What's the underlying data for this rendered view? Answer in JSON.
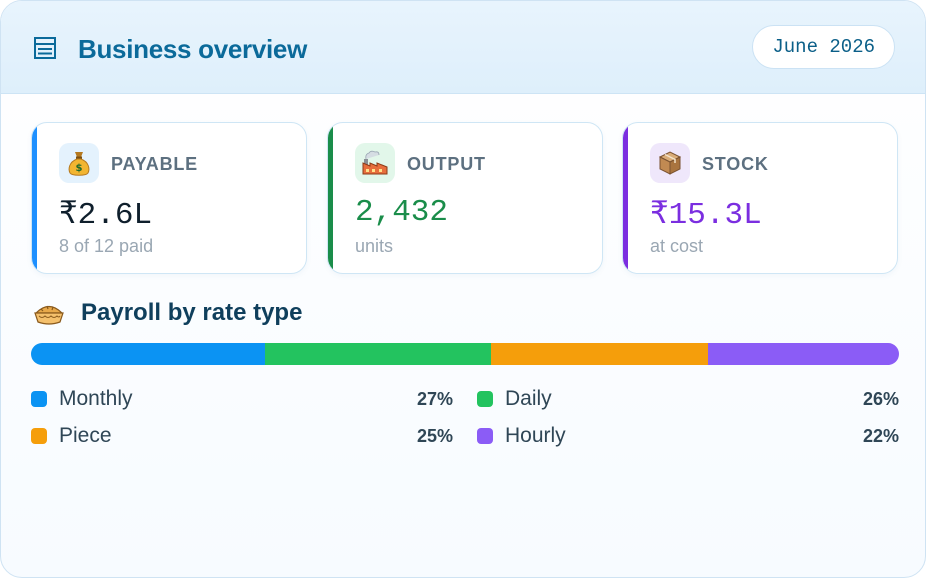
{
  "header": {
    "title": "Business overview",
    "month": "June 2026",
    "icon": "list-icon"
  },
  "stats": [
    {
      "label": "PAYABLE",
      "value": "₹2.6L",
      "sub": "8 of 12 paid",
      "icon": "money-bag-icon",
      "accent": "#1e90ff",
      "value_color": "#0f1f2c",
      "icon_bg": "#e4f2fd"
    },
    {
      "label": "OUTPUT",
      "value": "2,432",
      "sub": "units",
      "icon": "factory-icon",
      "accent": "#1a8d4a",
      "value_color": "#1a8d4a",
      "icon_bg": "#e2f7ea"
    },
    {
      "label": "STOCK",
      "value": "₹15.3L",
      "sub": "at cost",
      "icon": "package-icon",
      "accent": "#7b2ee0",
      "value_color": "#7b2ee0",
      "icon_bg": "#efe7fb"
    }
  ],
  "payroll": {
    "title": "Payroll by rate type",
    "icon": "pie-icon",
    "segments": [
      {
        "name": "Monthly",
        "percent": "27%",
        "share": 27,
        "color": "#0b93f3"
      },
      {
        "name": "Daily",
        "percent": "26%",
        "share": 26,
        "color": "#23c35f"
      },
      {
        "name": "Piece",
        "percent": "25%",
        "share": 25,
        "color": "#f59e0b"
      },
      {
        "name": "Hourly",
        "percent": "22%",
        "share": 22,
        "color": "#8b5cf6"
      }
    ]
  }
}
